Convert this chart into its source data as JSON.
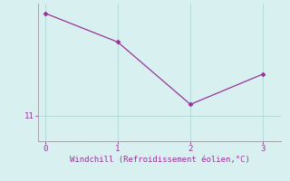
{
  "x": [
    0,
    1,
    2,
    3
  ],
  "y": [
    14.2,
    13.3,
    11.35,
    12.3
  ],
  "line_color": "#993399",
  "marker_color": "#993399",
  "background_color": "#d9f0f0",
  "grid_color": "#b0d8d8",
  "axis_color": "#999999",
  "tick_color": "#993399",
  "xlabel": "Windchill (Refroidissement éolien,°C)",
  "xlabel_color": "#993399",
  "ytick_labels": [
    "11"
  ],
  "ytick_values": [
    11
  ],
  "xlim": [
    -0.1,
    3.25
  ],
  "ylim": [
    10.2,
    14.5
  ],
  "xticks": [
    0,
    1,
    2,
    3
  ]
}
